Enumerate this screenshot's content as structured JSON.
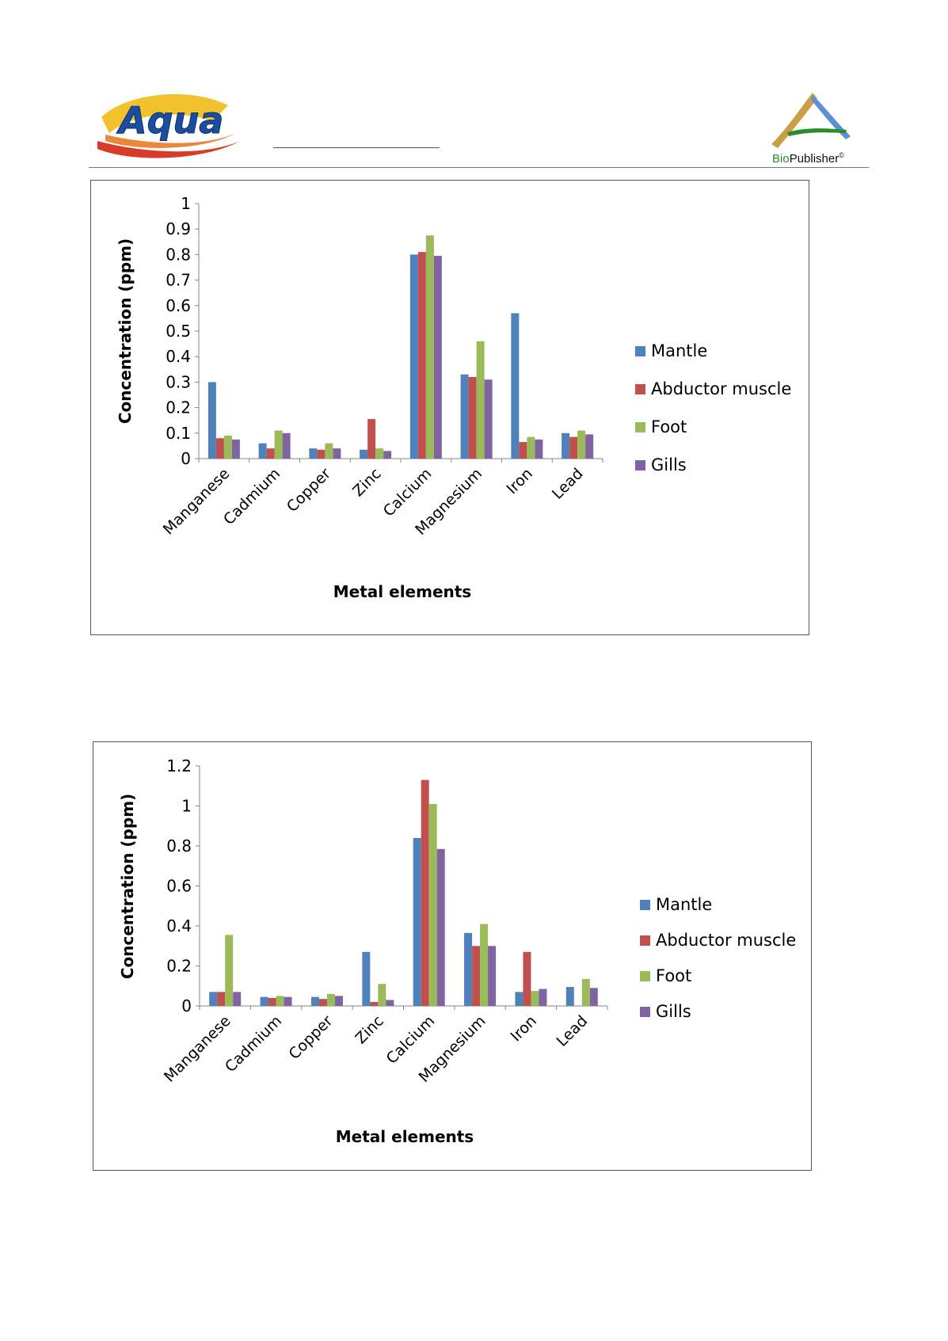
{
  "header": {
    "logo_left": {
      "icon": "aqua-logo",
      "text": "Aqua"
    },
    "logo_right": {
      "icon": "biopublisher-logo",
      "text_bio": "Bio",
      "text_publisher": "Publisher",
      "copyright": "©"
    }
  },
  "colors": {
    "Mantle": "#4f81bd",
    "Abductor muscle": "#c0504d",
    "Foot": "#9bbb59",
    "Gills": "#8064a2"
  },
  "chart_data": [
    {
      "type": "bar",
      "xlabel": "Metal elements",
      "ylabel": "Concentration (ppm)",
      "ylim": [
        0,
        1
      ],
      "yticks": [
        "0",
        "0.1",
        "0.2",
        "0.3",
        "0.4",
        "0.5",
        "0.6",
        "0.7",
        "0.8",
        "0.9",
        "1"
      ],
      "categories": [
        "Manganese",
        "Cadmium",
        "Copper",
        "Zinc",
        "Calcium",
        "Magnesium",
        "Iron",
        "Lead"
      ],
      "legend_position": "right",
      "series": [
        {
          "name": "Mantle",
          "values": [
            0.3,
            0.06,
            0.04,
            0.035,
            0.8,
            0.33,
            0.57,
            0.1
          ]
        },
        {
          "name": "Abductor muscle",
          "values": [
            0.08,
            0.04,
            0.035,
            0.155,
            0.81,
            0.32,
            0.065,
            0.085
          ]
        },
        {
          "name": "Foot",
          "values": [
            0.09,
            0.11,
            0.06,
            0.04,
            0.875,
            0.46,
            0.085,
            0.11
          ]
        },
        {
          "name": "Gills",
          "values": [
            0.075,
            0.1,
            0.04,
            0.03,
            0.795,
            0.31,
            0.075,
            0.095
          ]
        }
      ]
    },
    {
      "type": "bar",
      "xlabel": "Metal elements",
      "ylabel": "Concentration (ppm)",
      "ylim": [
        0,
        1.2
      ],
      "yticks": [
        "0",
        "0.2",
        "0.4",
        "0.6",
        "0.8",
        "1",
        "1.2"
      ],
      "categories": [
        "Manganese",
        "Cadmium",
        "Copper",
        "Zinc",
        "Calcium",
        "Magnesium",
        "Iron",
        "Lead"
      ],
      "legend_position": "right",
      "series": [
        {
          "name": "Mantle",
          "values": [
            0.07,
            0.045,
            0.045,
            0.27,
            0.84,
            0.365,
            0.07,
            0.095
          ]
        },
        {
          "name": "Abductor muscle",
          "values": [
            0.07,
            0.04,
            0.035,
            0.02,
            1.13,
            0.3,
            0.27,
            0.0
          ]
        },
        {
          "name": "Foot",
          "values": [
            0.355,
            0.05,
            0.06,
            0.11,
            1.01,
            0.41,
            0.075,
            0.135
          ]
        },
        {
          "name": "Gills",
          "values": [
            0.07,
            0.045,
            0.05,
            0.03,
            0.785,
            0.3,
            0.085,
            0.09
          ]
        }
      ]
    }
  ]
}
